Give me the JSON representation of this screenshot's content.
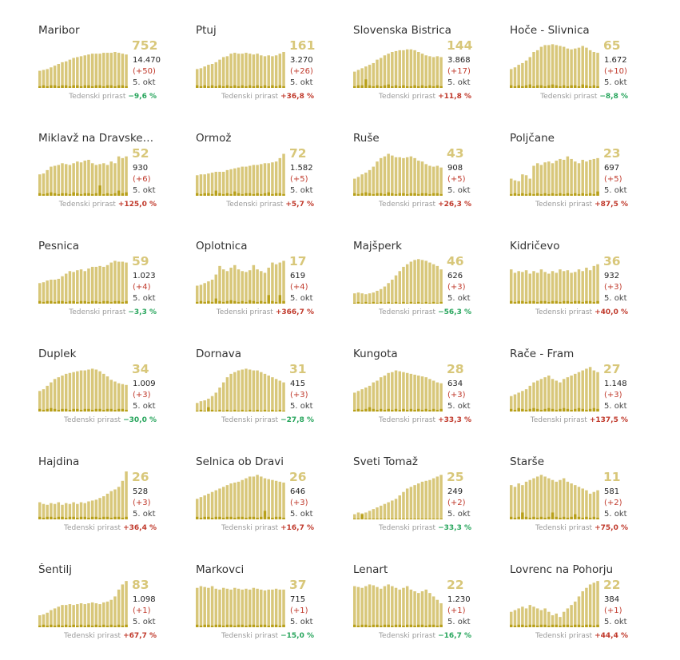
{
  "growth_label": "Tedenski prirast",
  "date_label": "5. okt",
  "colors": {
    "bar": "#d8c77a",
    "bar_low": "#b8a01a",
    "up": "#c0392b",
    "down": "#27a55c"
  },
  "chart_data": [
    {
      "type": "bar",
      "title": "Maribor",
      "value": "752",
      "total": "14.470",
      "delta": "(+50)",
      "growth": "−9,6 %",
      "trend": "down",
      "values": [
        20,
        21,
        22,
        24,
        26,
        28,
        30,
        31,
        33,
        35,
        36,
        37,
        38,
        39,
        40,
        40,
        40,
        41,
        41,
        41,
        42,
        41,
        40,
        39
      ],
      "low": [
        2,
        3,
        2,
        3,
        3,
        2,
        3,
        3,
        2,
        3,
        3,
        2,
        3,
        3,
        2,
        3,
        3,
        2,
        3,
        3,
        2,
        3,
        3,
        2
      ]
    },
    {
      "type": "bar",
      "title": "Ptuj",
      "value": "161",
      "total": "3.270",
      "delta": "(+26)",
      "growth": "+36,8 %",
      "trend": "up",
      "values": [
        22,
        23,
        25,
        27,
        28,
        30,
        33,
        36,
        37,
        40,
        41,
        40,
        40,
        41,
        40,
        39,
        40,
        38,
        37,
        38,
        37,
        38,
        40,
        42
      ],
      "low": [
        3,
        2,
        3,
        2,
        3,
        2,
        3,
        2,
        3,
        2,
        3,
        2,
        3,
        2,
        3,
        2,
        3,
        2,
        3,
        2,
        3,
        2,
        3,
        2
      ]
    },
    {
      "type": "bar",
      "title": "Slovenska Bistrica",
      "value": "144",
      "total": "3.868",
      "delta": "(+17)",
      "growth": "+11,8 %",
      "trend": "up",
      "values": [
        19,
        21,
        23,
        25,
        27,
        29,
        33,
        35,
        38,
        40,
        42,
        43,
        44,
        44,
        45,
        45,
        44,
        42,
        40,
        38,
        37,
        36,
        37,
        36
      ],
      "low": [
        2,
        3,
        3,
        10,
        3,
        2,
        3,
        2,
        3,
        4,
        2,
        3,
        2,
        3,
        2,
        2,
        3,
        2,
        3,
        2,
        3,
        2,
        3,
        2
      ]
    },
    {
      "type": "bar",
      "title": "Hoče - Slivnica",
      "value": "65",
      "total": "1.672",
      "delta": "(+10)",
      "growth": "−8,8 %",
      "trend": "down",
      "values": [
        22,
        24,
        27,
        29,
        32,
        36,
        42,
        44,
        48,
        50,
        50,
        51,
        50,
        49,
        48,
        46,
        45,
        46,
        47,
        49,
        47,
        44,
        42,
        41
      ],
      "low": [
        3,
        2,
        3,
        2,
        3,
        4,
        2,
        3,
        3,
        2,
        3,
        4,
        3,
        2,
        3,
        2,
        3,
        3,
        2,
        4,
        3,
        2,
        3,
        2
      ]
    },
    {
      "type": "bar",
      "title": "Miklavž na Dravskem polju",
      "title_shown": "Miklavž na Dravske…",
      "value": "52",
      "total": "930",
      "delta": "(+6)",
      "growth": "+125,0 %",
      "trend": "up",
      "values": [
        25,
        26,
        30,
        34,
        35,
        36,
        38,
        37,
        36,
        38,
        40,
        39,
        41,
        42,
        38,
        36,
        37,
        38,
        36,
        40,
        38,
        46,
        44,
        46
      ],
      "low": [
        3,
        2,
        3,
        4,
        3,
        2,
        3,
        3,
        2,
        4,
        3,
        2,
        3,
        3,
        2,
        3,
        12,
        2,
        3,
        2,
        3,
        6,
        3,
        4
      ]
    },
    {
      "type": "bar",
      "title": "Ormož",
      "value": "72",
      "total": "1.582",
      "delta": "(+5)",
      "growth": "+5,7 %",
      "trend": "up",
      "values": [
        24,
        25,
        25,
        26,
        27,
        28,
        28,
        28,
        30,
        31,
        32,
        33,
        34,
        34,
        35,
        36,
        36,
        37,
        38,
        38,
        39,
        40,
        44,
        49
      ],
      "low": [
        3,
        2,
        3,
        3,
        2,
        6,
        3,
        2,
        3,
        2,
        5,
        3,
        2,
        3,
        3,
        2,
        3,
        2,
        3,
        4,
        2,
        3,
        3,
        2
      ]
    },
    {
      "type": "bar",
      "title": "Ruše",
      "value": "43",
      "total": "908",
      "delta": "(+5)",
      "growth": "+26,3 %",
      "trend": "up",
      "values": [
        20,
        22,
        25,
        27,
        30,
        34,
        40,
        44,
        46,
        49,
        47,
        45,
        45,
        44,
        45,
        46,
        44,
        41,
        40,
        37,
        35,
        34,
        35,
        33
      ],
      "low": [
        3,
        2,
        3,
        4,
        3,
        2,
        3,
        3,
        2,
        4,
        3,
        2,
        3,
        3,
        2,
        3,
        3,
        2,
        3,
        3,
        2,
        3,
        3,
        2
      ]
    },
    {
      "type": "bar",
      "title": "Poljčane",
      "value": "23",
      "total": "697",
      "delta": "(+5)",
      "growth": "+87,5 %",
      "trend": "up",
      "values": [
        20,
        18,
        17,
        25,
        24,
        20,
        35,
        38,
        36,
        39,
        40,
        38,
        41,
        43,
        42,
        46,
        43,
        40,
        38,
        42,
        40,
        42,
        43,
        44
      ],
      "low": [
        2,
        3,
        2,
        3,
        2,
        3,
        2,
        3,
        2,
        3,
        2,
        3,
        2,
        3,
        2,
        3,
        2,
        3,
        2,
        3,
        2,
        3,
        2,
        5
      ]
    },
    {
      "type": "bar",
      "title": "Pesnica",
      "value": "59",
      "total": "1.023",
      "delta": "(+4)",
      "growth": "−3,3 %",
      "trend": "down",
      "values": [
        24,
        25,
        27,
        28,
        28,
        29,
        32,
        35,
        38,
        37,
        39,
        40,
        38,
        41,
        43,
        43,
        44,
        43,
        45,
        48,
        50,
        49,
        49,
        48
      ],
      "low": [
        3,
        2,
        3,
        3,
        2,
        3,
        3,
        2,
        3,
        3,
        2,
        3,
        3,
        2,
        3,
        3,
        2,
        3,
        3,
        2,
        3,
        3,
        2,
        3
      ]
    },
    {
      "type": "bar",
      "title": "Oplotnica",
      "value": "17",
      "total": "619",
      "delta": "(+4)",
      "growth": "+366,7 %",
      "trend": "up",
      "values": [
        21,
        22,
        24,
        26,
        28,
        34,
        44,
        40,
        38,
        42,
        45,
        40,
        38,
        37,
        39,
        45,
        40,
        38,
        36,
        42,
        48,
        46,
        48,
        50
      ],
      "low": [
        2,
        3,
        2,
        3,
        2,
        6,
        3,
        2,
        3,
        4,
        3,
        2,
        3,
        2,
        4,
        3,
        2,
        3,
        2,
        10,
        3,
        2,
        10,
        3
      ]
    },
    {
      "type": "bar",
      "title": "Majšperk",
      "value": "46",
      "total": "626",
      "delta": "(+3)",
      "growth": "−56,3 %",
      "trend": "down",
      "values": [
        12,
        13,
        12,
        11,
        12,
        13,
        15,
        17,
        20,
        24,
        28,
        33,
        38,
        43,
        46,
        49,
        51,
        52,
        51,
        50,
        48,
        46,
        44,
        40
      ],
      "low": [
        1,
        2,
        1,
        2,
        1,
        2,
        1,
        2,
        1,
        2,
        1,
        2,
        1,
        2,
        1,
        2,
        1,
        2,
        1,
        2,
        1,
        2,
        1,
        2
      ]
    },
    {
      "type": "bar",
      "title": "Kidričevo",
      "value": "36",
      "total": "932",
      "delta": "(+3)",
      "growth": "+40,0 %",
      "trend": "up",
      "values": [
        40,
        36,
        38,
        37,
        39,
        35,
        38,
        36,
        40,
        37,
        35,
        38,
        36,
        40,
        38,
        39,
        36,
        37,
        40,
        38,
        42,
        39,
        44,
        46
      ],
      "low": [
        3,
        2,
        3,
        3,
        2,
        3,
        3,
        2,
        3,
        3,
        2,
        3,
        3,
        2,
        3,
        3,
        2,
        3,
        3,
        2,
        3,
        3,
        2,
        3
      ]
    },
    {
      "type": "bar",
      "title": "Duplek",
      "value": "34",
      "total": "1.009",
      "delta": "(+3)",
      "growth": "−30,0 %",
      "trend": "down",
      "values": [
        24,
        26,
        30,
        34,
        38,
        40,
        42,
        44,
        45,
        46,
        47,
        48,
        48,
        49,
        50,
        49,
        47,
        44,
        41,
        37,
        35,
        33,
        32,
        31
      ],
      "low": [
        3,
        2,
        3,
        4,
        3,
        2,
        3,
        3,
        2,
        3,
        3,
        2,
        3,
        3,
        2,
        3,
        3,
        2,
        3,
        3,
        2,
        3,
        3,
        2
      ]
    },
    {
      "type": "bar",
      "title": "Dornava",
      "value": "31",
      "total": "415",
      "delta": "(+3)",
      "growth": "−27,8 %",
      "trend": "down",
      "values": [
        10,
        12,
        13,
        15,
        18,
        22,
        28,
        34,
        40,
        44,
        46,
        48,
        49,
        50,
        49,
        48,
        48,
        46,
        44,
        42,
        40,
        38,
        36,
        34
      ],
      "low": [
        1,
        2,
        1,
        5,
        2,
        1,
        2,
        1,
        2,
        1,
        2,
        1,
        2,
        1,
        2,
        1,
        2,
        1,
        2,
        1,
        2,
        1,
        2,
        1
      ]
    },
    {
      "type": "bar",
      "title": "Kungota",
      "value": "28",
      "total": "634",
      "delta": "(+3)",
      "growth": "+33,3 %",
      "trend": "up",
      "values": [
        22,
        24,
        26,
        28,
        30,
        34,
        36,
        40,
        42,
        45,
        46,
        48,
        47,
        46,
        45,
        44,
        43,
        42,
        41,
        40,
        38,
        36,
        34,
        33
      ],
      "low": [
        2,
        3,
        2,
        3,
        5,
        3,
        2,
        3,
        2,
        3,
        2,
        3,
        2,
        3,
        2,
        3,
        2,
        3,
        2,
        3,
        2,
        3,
        2,
        3
      ]
    },
    {
      "type": "bar",
      "title": "Rače - Fram",
      "value": "27",
      "total": "1.148",
      "delta": "(+3)",
      "growth": "+137,5 %",
      "trend": "up",
      "values": [
        18,
        20,
        22,
        24,
        26,
        30,
        34,
        36,
        38,
        40,
        42,
        38,
        36,
        34,
        38,
        40,
        42,
        44,
        46,
        48,
        50,
        52,
        48,
        46
      ],
      "low": [
        3,
        2,
        4,
        3,
        2,
        3,
        4,
        3,
        2,
        3,
        4,
        3,
        2,
        3,
        4,
        3,
        2,
        3,
        4,
        3,
        2,
        3,
        4,
        3
      ]
    },
    {
      "type": "bar",
      "title": "Hajdina",
      "value": "26",
      "total": "528",
      "delta": "(+3)",
      "growth": "+36,4 %",
      "trend": "up",
      "values": [
        20,
        18,
        17,
        19,
        18,
        20,
        17,
        19,
        18,
        20,
        18,
        20,
        19,
        21,
        22,
        23,
        25,
        27,
        30,
        33,
        35,
        38,
        45,
        56
      ],
      "low": [
        3,
        2,
        3,
        3,
        2,
        3,
        3,
        2,
        3,
        3,
        2,
        3,
        3,
        2,
        3,
        3,
        2,
        3,
        3,
        2,
        3,
        3,
        2,
        3
      ]
    },
    {
      "type": "bar",
      "title": "Selnica ob Dravi",
      "value": "26",
      "total": "646",
      "delta": "(+3)",
      "growth": "+16,7 %",
      "trend": "up",
      "values": [
        24,
        26,
        28,
        30,
        32,
        34,
        36,
        38,
        40,
        42,
        43,
        44,
        46,
        48,
        50,
        50,
        52,
        50,
        48,
        47,
        46,
        45,
        44,
        43
      ],
      "low": [
        3,
        2,
        3,
        3,
        2,
        3,
        3,
        2,
        3,
        3,
        2,
        3,
        3,
        2,
        3,
        3,
        2,
        3,
        10,
        3,
        2,
        3,
        3,
        2
      ]
    },
    {
      "type": "bar",
      "title": "Sveti Tomaž",
      "value": "25",
      "total": "249",
      "delta": "(+2)",
      "growth": "−33,3 %",
      "trend": "down",
      "values": [
        6,
        8,
        7,
        8,
        10,
        12,
        14,
        16,
        18,
        20,
        22,
        24,
        28,
        32,
        36,
        38,
        40,
        42,
        44,
        45,
        46,
        48,
        50,
        52
      ],
      "low": [
        1,
        1,
        6,
        1,
        1,
        1,
        1,
        1,
        1,
        1,
        1,
        1,
        1,
        1,
        1,
        1,
        1,
        1,
        1,
        1,
        1,
        1,
        1,
        1
      ]
    },
    {
      "type": "bar",
      "title": "Starše",
      "value": "11",
      "total": "581",
      "delta": "(+2)",
      "growth": "+75,0 %",
      "trend": "up",
      "values": [
        40,
        38,
        42,
        40,
        44,
        46,
        48,
        50,
        52,
        50,
        48,
        46,
        44,
        46,
        48,
        44,
        42,
        40,
        38,
        36,
        34,
        30,
        32,
        34
      ],
      "low": [
        3,
        2,
        3,
        8,
        3,
        2,
        3,
        2,
        3,
        2,
        3,
        8,
        3,
        2,
        3,
        2,
        3,
        6,
        3,
        2,
        3,
        2,
        3,
        2
      ]
    },
    {
      "type": "bar",
      "title": "Šentilj",
      "value": "83",
      "total": "1.098",
      "delta": "(+1)",
      "growth": "+67,7 %",
      "trend": "up",
      "values": [
        14,
        15,
        17,
        20,
        22,
        24,
        26,
        26,
        27,
        26,
        27,
        28,
        27,
        28,
        29,
        28,
        27,
        29,
        30,
        32,
        36,
        44,
        50,
        54
      ],
      "low": [
        2,
        3,
        2,
        3,
        2,
        3,
        2,
        3,
        2,
        3,
        2,
        3,
        2,
        3,
        2,
        3,
        2,
        3,
        2,
        3,
        2,
        3,
        2,
        3
      ]
    },
    {
      "type": "bar",
      "title": "Markovci",
      "value": "37",
      "total": "715",
      "delta": "(+1)",
      "growth": "−15,0 %",
      "trend": "down",
      "values": [
        46,
        48,
        47,
        46,
        48,
        45,
        44,
        46,
        45,
        44,
        46,
        45,
        44,
        45,
        44,
        46,
        45,
        44,
        43,
        44,
        44,
        45,
        44,
        44
      ],
      "low": [
        3,
        2,
        3,
        3,
        2,
        3,
        3,
        2,
        3,
        3,
        2,
        3,
        3,
        2,
        3,
        3,
        2,
        3,
        3,
        2,
        3,
        3,
        2,
        3
      ]
    },
    {
      "type": "bar",
      "title": "Lenart",
      "value": "22",
      "total": "1.230",
      "delta": "(+1)",
      "growth": "−16,7 %",
      "trend": "down",
      "values": [
        48,
        47,
        46,
        48,
        50,
        49,
        47,
        45,
        48,
        50,
        48,
        46,
        44,
        46,
        48,
        44,
        42,
        40,
        42,
        44,
        40,
        36,
        32,
        28
      ],
      "low": [
        3,
        2,
        3,
        3,
        2,
        3,
        3,
        2,
        3,
        3,
        2,
        3,
        3,
        2,
        3,
        3,
        2,
        3,
        3,
        2,
        3,
        3,
        2,
        3
      ]
    },
    {
      "type": "bar",
      "title": "Lovrenc na Pohorju",
      "value": "22",
      "total": "384",
      "delta": "(+1)",
      "growth": "+44,4 %",
      "trend": "up",
      "values": [
        18,
        20,
        22,
        24,
        22,
        26,
        24,
        22,
        20,
        22,
        18,
        14,
        16,
        12,
        18,
        22,
        26,
        30,
        36,
        42,
        46,
        50,
        52,
        54
      ],
      "low": [
        3,
        2,
        3,
        3,
        2,
        3,
        3,
        2,
        3,
        3,
        2,
        3,
        3,
        2,
        3,
        3,
        2,
        3,
        3,
        2,
        3,
        3,
        2,
        3
      ]
    }
  ]
}
